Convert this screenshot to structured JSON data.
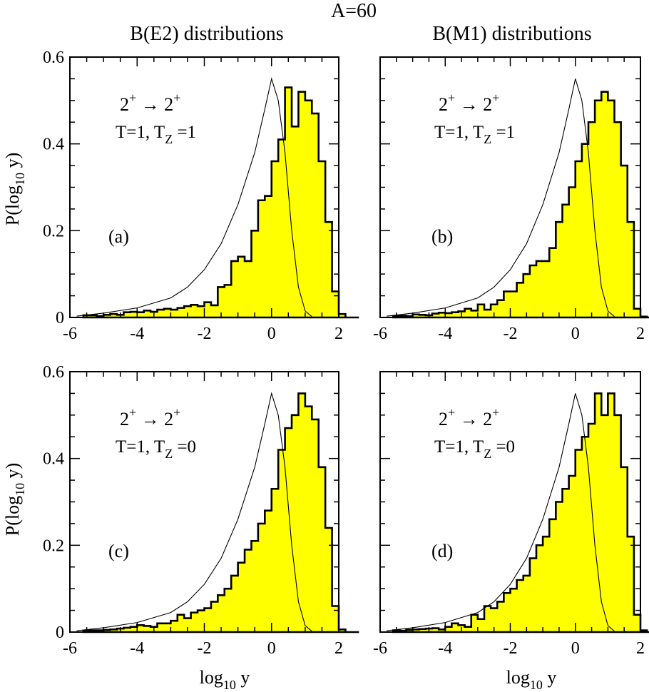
{
  "figure": {
    "title": "A=60",
    "column_titles": [
      "B(E2)  distributions",
      "B(M1) distributions"
    ],
    "ylabel_main": "P(log",
    "ylabel_sub": "10",
    "ylabel_tail": " y)",
    "xlabel_main": "log",
    "xlabel_sub": "10",
    "xlabel_tail": " y"
  },
  "colors": {
    "fill": "#ffff00",
    "histogram_line": "#000000",
    "fit_curve": "#000000",
    "background": "#ffffff"
  },
  "chart_data": [
    {
      "type": "histogram",
      "panel": "(a)",
      "column": "B(E2) distributions",
      "transition_a": "2",
      "transition_b": "2",
      "transition_sup": "+",
      "quantum_line": "T=1, T",
      "quantum_sub": "Z",
      "quantum_tail": " =1",
      "xlim": [
        -6,
        2
      ],
      "ylim": [
        0,
        0.6
      ],
      "xticks": [
        "-6",
        "-4",
        "-2",
        "0",
        "2"
      ],
      "yticks": [
        "0",
        "0.2",
        "0.4",
        "0.6"
      ],
      "bin_start": -5.6,
      "bin_width": 0.2,
      "values": [
        0.005,
        0.005,
        0.003,
        0.006,
        0.008,
        0.006,
        0.012,
        0.013,
        0.012,
        0.016,
        0.013,
        0.018,
        0.02,
        0.018,
        0.022,
        0.026,
        0.029,
        0.026,
        0.035,
        0.028,
        0.07,
        0.075,
        0.13,
        0.14,
        0.13,
        0.2,
        0.27,
        0.28,
        0.36,
        0.41,
        0.53,
        0.44,
        0.52,
        0.5,
        0.47,
        0.36,
        0.22,
        0.06,
        0.008,
        0.0,
        0.0
      ],
      "fit_curve": {
        "x": [
          -5.8,
          -5.0,
          -4.0,
          -3.0,
          -2.5,
          -2.0,
          -1.5,
          -1.0,
          -0.5,
          -0.2,
          0.0,
          0.2,
          0.4,
          0.6,
          0.8,
          1.0,
          1.2
        ],
        "y": [
          0.003,
          0.01,
          0.022,
          0.045,
          0.07,
          0.11,
          0.17,
          0.26,
          0.38,
          0.48,
          0.55,
          0.5,
          0.38,
          0.2,
          0.07,
          0.015,
          0.002
        ]
      }
    },
    {
      "type": "histogram",
      "panel": "(b)",
      "column": "B(M1) distributions",
      "transition_a": "2",
      "transition_b": "2",
      "transition_sup": "+",
      "quantum_line": "T=1, T",
      "quantum_sub": "Z",
      "quantum_tail": " =1",
      "xlim": [
        -6,
        2
      ],
      "ylim": [
        0,
        0.6
      ],
      "xticks": [
        "-6",
        "-4",
        "-2",
        "0",
        "2"
      ],
      "yticks": [
        "0",
        "0.2",
        "0.4",
        "0.6"
      ],
      "bin_start": -5.6,
      "bin_width": 0.2,
      "values": [
        0.003,
        0.004,
        0.003,
        0.007,
        0.006,
        0.005,
        0.009,
        0.011,
        0.01,
        0.012,
        0.014,
        0.02,
        0.016,
        0.03,
        0.018,
        0.03,
        0.04,
        0.06,
        0.06,
        0.08,
        0.1,
        0.12,
        0.13,
        0.13,
        0.16,
        0.22,
        0.26,
        0.3,
        0.36,
        0.4,
        0.45,
        0.5,
        0.52,
        0.5,
        0.45,
        0.35,
        0.22,
        0.02,
        0.002,
        0.0,
        0.0
      ],
      "fit_curve": {
        "x": [
          -5.8,
          -5.0,
          -4.0,
          -3.0,
          -2.5,
          -2.0,
          -1.5,
          -1.0,
          -0.5,
          -0.2,
          0.0,
          0.2,
          0.4,
          0.6,
          0.8,
          1.0,
          1.2
        ],
        "y": [
          0.003,
          0.01,
          0.022,
          0.045,
          0.07,
          0.11,
          0.17,
          0.26,
          0.38,
          0.48,
          0.55,
          0.5,
          0.38,
          0.2,
          0.07,
          0.015,
          0.002
        ]
      }
    },
    {
      "type": "histogram",
      "panel": "(c)",
      "column": "B(E2) distributions",
      "transition_a": "2",
      "transition_b": "2",
      "transition_sup": "+",
      "quantum_line": "T=1, T",
      "quantum_sub": "Z",
      "quantum_tail": " =0",
      "xlim": [
        -6,
        2
      ],
      "ylim": [
        0,
        0.6
      ],
      "xticks": [
        "-6",
        "-4",
        "-2",
        "0",
        "2"
      ],
      "yticks": [
        "0",
        "0.2",
        "0.4",
        "0.6"
      ],
      "bin_start": -5.6,
      "bin_width": 0.2,
      "values": [
        0.003,
        0.004,
        0.004,
        0.005,
        0.006,
        0.008,
        0.01,
        0.012,
        0.016,
        0.014,
        0.012,
        0.02,
        0.02,
        0.026,
        0.04,
        0.032,
        0.045,
        0.05,
        0.055,
        0.07,
        0.085,
        0.1,
        0.13,
        0.16,
        0.19,
        0.21,
        0.25,
        0.28,
        0.33,
        0.42,
        0.47,
        0.5,
        0.55,
        0.52,
        0.49,
        0.38,
        0.24,
        0.06,
        0.006,
        0.0,
        0.0
      ],
      "fit_curve": {
        "x": [
          -5.8,
          -5.0,
          -4.0,
          -3.0,
          -2.5,
          -2.0,
          -1.5,
          -1.0,
          -0.5,
          -0.2,
          0.0,
          0.2,
          0.4,
          0.6,
          0.8,
          1.0,
          1.2
        ],
        "y": [
          0.003,
          0.01,
          0.022,
          0.045,
          0.07,
          0.11,
          0.17,
          0.26,
          0.38,
          0.48,
          0.55,
          0.5,
          0.38,
          0.2,
          0.07,
          0.015,
          0.002
        ]
      }
    },
    {
      "type": "histogram",
      "panel": "(d)",
      "column": "B(M1) distributions",
      "transition_a": "2",
      "transition_b": "2",
      "transition_sup": "+",
      "quantum_line": "T=1, T",
      "quantum_sub": "Z",
      "quantum_tail": " =0",
      "xlim": [
        -6,
        2
      ],
      "ylim": [
        0,
        0.6
      ],
      "xticks": [
        "-6",
        "-4",
        "-2",
        "0",
        "2"
      ],
      "yticks": [
        "0",
        "0.2",
        "0.4",
        "0.6"
      ],
      "bin_start": -5.6,
      "bin_width": 0.2,
      "values": [
        0.004,
        0.003,
        0.005,
        0.006,
        0.007,
        0.008,
        0.009,
        0.006,
        0.012,
        0.02,
        0.016,
        0.012,
        0.04,
        0.03,
        0.06,
        0.055,
        0.07,
        0.09,
        0.1,
        0.12,
        0.13,
        0.17,
        0.2,
        0.22,
        0.26,
        0.3,
        0.33,
        0.36,
        0.42,
        0.45,
        0.48,
        0.55,
        0.5,
        0.55,
        0.5,
        0.38,
        0.22,
        0.04,
        0.004,
        0.0,
        0.0
      ],
      "fit_curve": {
        "x": [
          -5.8,
          -5.0,
          -4.0,
          -3.0,
          -2.5,
          -2.0,
          -1.5,
          -1.0,
          -0.5,
          -0.2,
          0.0,
          0.2,
          0.4,
          0.6,
          0.8,
          1.0,
          1.2
        ],
        "y": [
          0.003,
          0.01,
          0.022,
          0.045,
          0.07,
          0.11,
          0.17,
          0.26,
          0.38,
          0.48,
          0.55,
          0.5,
          0.38,
          0.2,
          0.07,
          0.015,
          0.002
        ]
      }
    }
  ]
}
